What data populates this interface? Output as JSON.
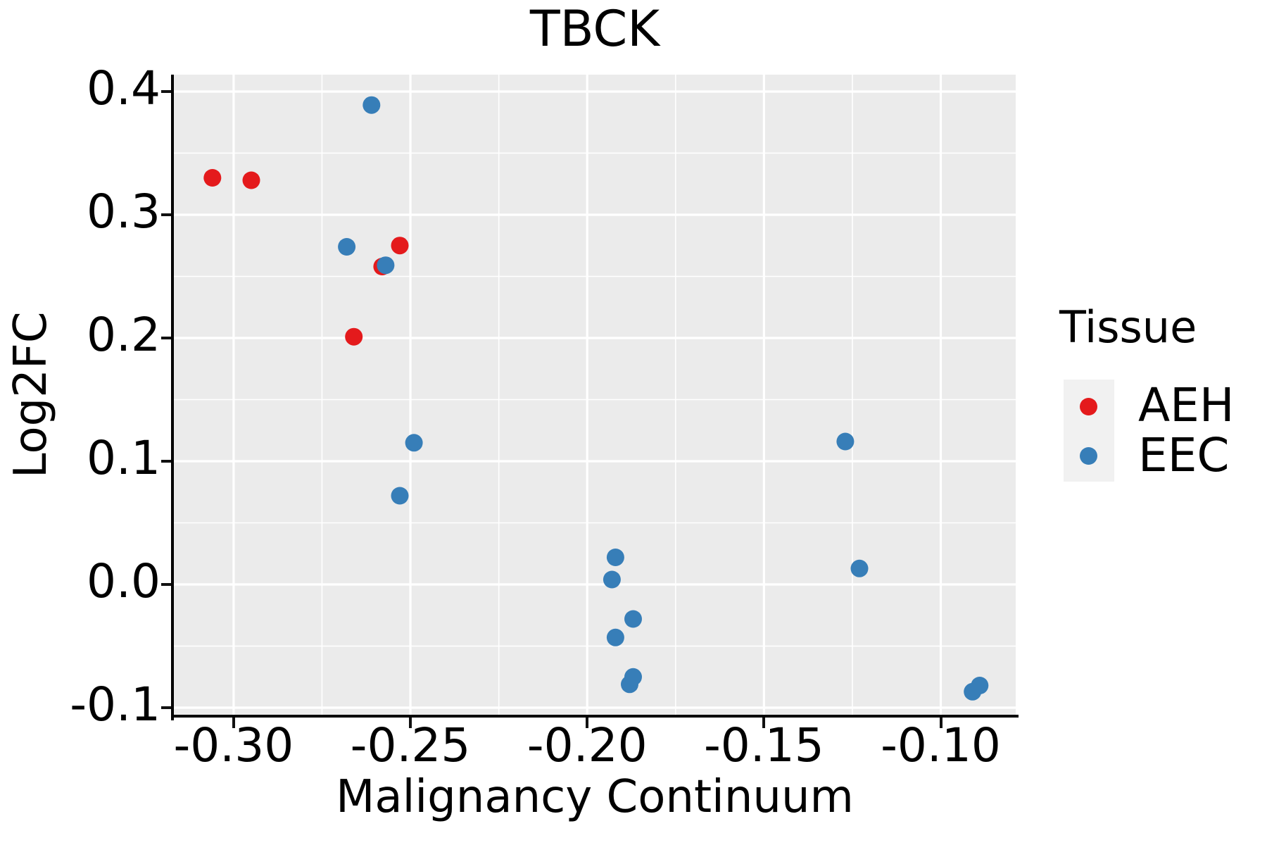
{
  "title": "TBCK",
  "colors": {
    "aeh": "#E41A1C",
    "eec": "#377EB8",
    "panel_background": "#EBEBEB",
    "gridline": "#FFFFFF",
    "axis_line": "#000000",
    "legend_key_background": "#F1F1F1",
    "text": "#000000"
  },
  "legend": {
    "title": "Tissue",
    "items": [
      {
        "label": "AEH",
        "color": "#E41A1C"
      },
      {
        "label": "EEC",
        "color": "#377EB8"
      }
    ]
  },
  "chart_data": {
    "type": "scatter",
    "title": "TBCK",
    "xlabel": "Malignancy Continuum",
    "ylabel": "Log2FC",
    "xlim": [
      -0.3169,
      -0.0788
    ],
    "ylim": [
      -0.1057,
      0.4137
    ],
    "x_ticks_major": [
      -0.3,
      -0.25,
      -0.2,
      -0.15,
      -0.1
    ],
    "x_tick_labels": [
      "-0.30",
      "-0.25",
      "-0.20",
      "-0.15",
      "-0.10"
    ],
    "x_ticks_minor": [
      -0.275,
      -0.225,
      -0.175,
      -0.125
    ],
    "y_ticks_major": [
      0.4,
      0.3,
      0.2,
      0.1,
      0.0,
      -0.1
    ],
    "y_tick_labels": [
      "0.4",
      "0.3",
      "0.2",
      "0.1",
      "0.0",
      "-0.1"
    ],
    "y_ticks_minor": [
      0.35,
      0.25,
      0.15,
      0.05,
      -0.05
    ],
    "grid": true,
    "legend_position": "right",
    "marker_radius_px": 12.5,
    "series": [
      {
        "name": "AEH",
        "color": "#E41A1C",
        "points": [
          [
            -0.306,
            0.33
          ],
          [
            -0.295,
            0.328
          ],
          [
            -0.253,
            0.275
          ],
          [
            -0.258,
            0.258
          ],
          [
            -0.266,
            0.201
          ]
        ]
      },
      {
        "name": "EEC",
        "color": "#377EB8",
        "points": [
          [
            -0.261,
            0.389
          ],
          [
            -0.268,
            0.274
          ],
          [
            -0.257,
            0.259
          ],
          [
            -0.249,
            0.115
          ],
          [
            -0.253,
            0.072
          ],
          [
            -0.192,
            0.022
          ],
          [
            -0.193,
            0.004
          ],
          [
            -0.187,
            -0.028
          ],
          [
            -0.192,
            -0.043
          ],
          [
            -0.188,
            -0.081
          ],
          [
            -0.187,
            -0.075
          ],
          [
            -0.127,
            0.116
          ],
          [
            -0.123,
            0.013
          ],
          [
            -0.091,
            -0.087
          ],
          [
            -0.089,
            -0.082
          ]
        ]
      }
    ]
  }
}
